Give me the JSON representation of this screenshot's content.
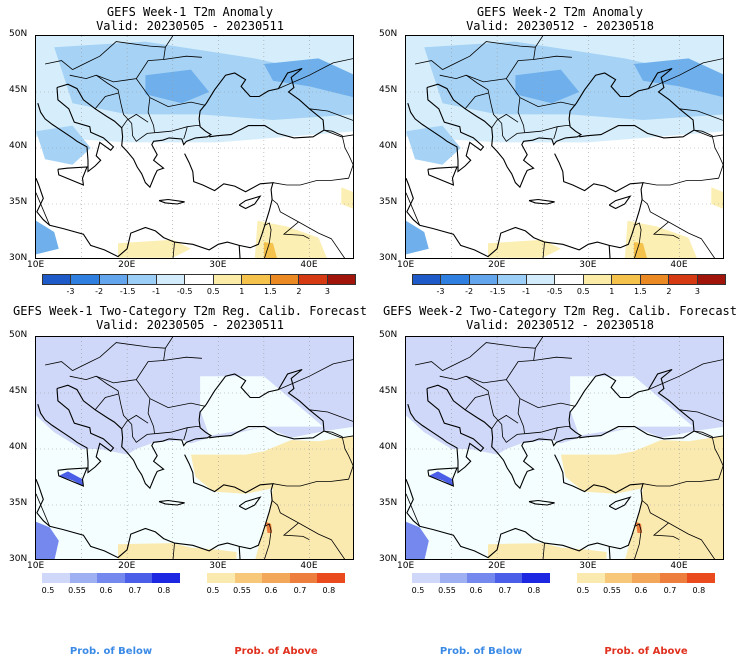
{
  "panels": [
    {
      "title": "GEFS Week-1 T2m Anomaly",
      "valid": "Valid: 20230505 - 20230511"
    },
    {
      "title": "GEFS Week-2 T2m Anomaly",
      "valid": "Valid: 20230512 - 20230518"
    },
    {
      "title": "GEFS Week-1 Two-Category T2m Reg. Calib. Forecast",
      "valid": "Valid: 20230505 - 20230511"
    },
    {
      "title": "GEFS Week-2 Two-Category T2m Reg. Calib. Forecast",
      "valid": "Valid: 20230512 - 20230518"
    }
  ],
  "lat_labels": [
    "50N",
    "45N",
    "40N",
    "35N",
    "30N"
  ],
  "lon_labels": [
    "10E",
    "20E",
    "30E",
    "40E"
  ],
  "anomaly_scale": {
    "ticks": [
      "-3",
      "-2",
      "-1.5",
      "-1",
      "-0.5",
      "0.5",
      "1",
      "1.5",
      "2",
      "3"
    ],
    "colors": [
      "#1e5ac8",
      "#2f7fe0",
      "#63a6ee",
      "#9ccff8",
      "#d2ecfb",
      "#ffffff",
      "#fbeca8",
      "#f5c24c",
      "#eb8a22",
      "#d63a12",
      "#a0140a"
    ]
  },
  "prob_below": {
    "ticks": [
      "0.5",
      "0.55",
      "0.6",
      "0.7",
      "0.8"
    ],
    "colors": [
      "#cfd8f8",
      "#9fb0f2",
      "#7488ee",
      "#4a5ee8",
      "#1d26e0"
    ],
    "label": "Prob. of Below",
    "label_color": "#3a8ae6"
  },
  "prob_above": {
    "ticks": [
      "0.5",
      "0.55",
      "0.6",
      "0.7",
      "0.8"
    ],
    "colors": [
      "#fbeab0",
      "#f8c87a",
      "#f3a75a",
      "#ee7e3e",
      "#e94b1f"
    ],
    "label": "Prob. of Above",
    "label_color": "#e0301e"
  }
}
